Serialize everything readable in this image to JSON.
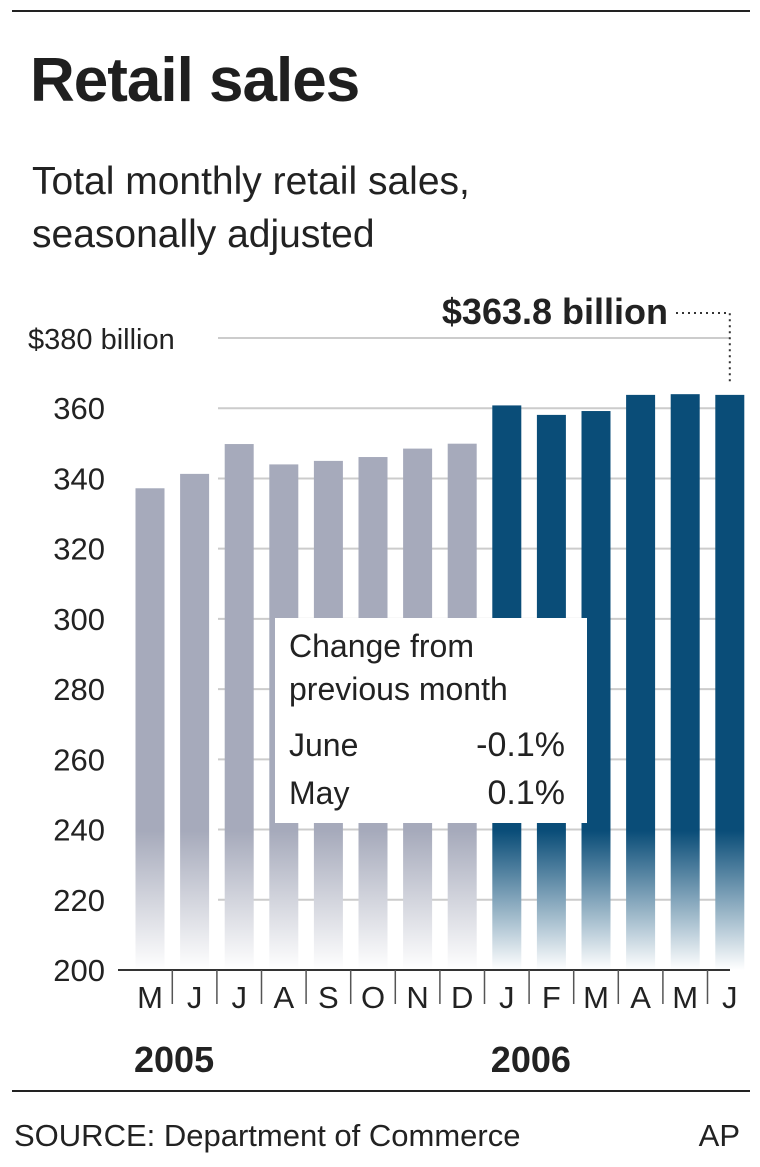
{
  "header": {
    "title": "Retail sales",
    "subtitle_line1": "Total monthly retail sales,",
    "subtitle_line2": "seasonally adjusted"
  },
  "footer": {
    "source": "SOURCE: Department of Commerce",
    "credit": "AP"
  },
  "chart_data": {
    "type": "bar",
    "categories": [
      "M",
      "J",
      "J",
      "A",
      "S",
      "O",
      "N",
      "D",
      "J",
      "F",
      "M",
      "A",
      "M",
      "J"
    ],
    "year_labels": [
      {
        "label": "2005",
        "start_index": 0
      },
      {
        "label": "2006",
        "start_index": 8
      }
    ],
    "values": [
      337.2,
      341.3,
      349.8,
      344.0,
      345.0,
      346.1,
      348.5,
      349.9,
      360.8,
      358.1,
      359.2,
      363.8,
      364.0,
      363.8
    ],
    "ylim": [
      200,
      380
    ],
    "yticks": [
      200,
      220,
      240,
      260,
      280,
      300,
      320,
      340,
      360,
      380
    ],
    "ytick_labels": [
      "200",
      "220",
      "240",
      "260",
      "280",
      "300",
      "320",
      "340",
      "360",
      "$380 billion"
    ],
    "grid": true,
    "colors": {
      "2005": "#a6aabb",
      "2006": "#0a4d78",
      "fade": "#ffffff",
      "grid": "#cccccc"
    },
    "annotation": {
      "text": "$363.8 billion",
      "target_index": 13
    },
    "inset": {
      "title_line1": "Change from",
      "title_line2": "previous month",
      "rows": [
        {
          "label": "June",
          "value": "-0.1%"
        },
        {
          "label": "May",
          "value": "0.1%"
        }
      ]
    }
  }
}
